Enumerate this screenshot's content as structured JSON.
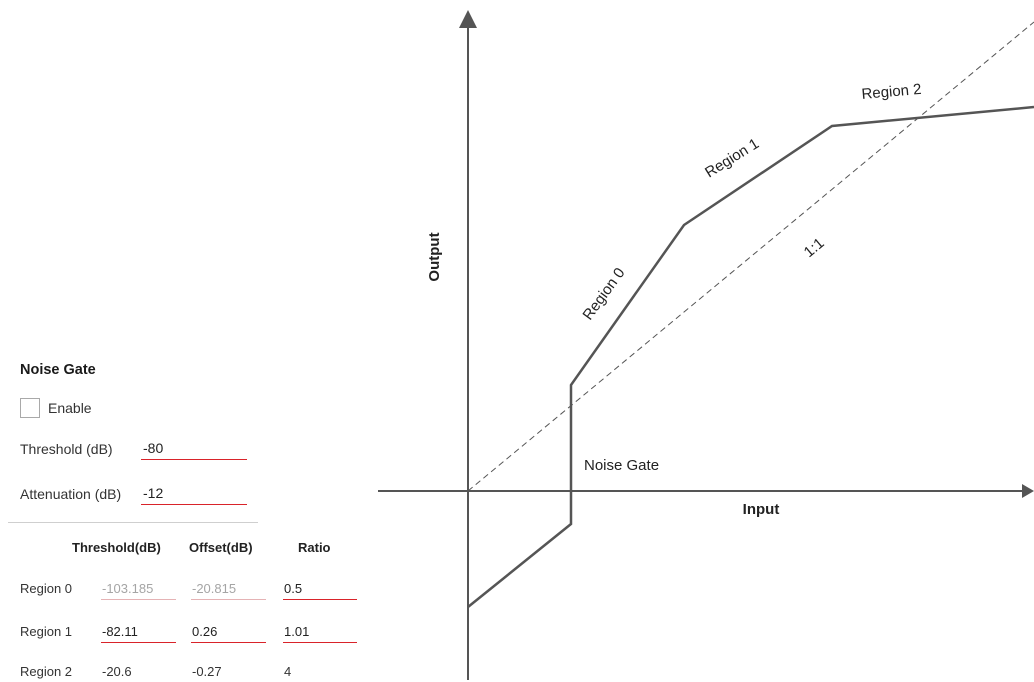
{
  "noise_gate": {
    "title": "Noise Gate",
    "enable_label": "Enable",
    "enabled": false,
    "threshold_label": "Threshold (dB)",
    "threshold_value": "-80",
    "attenuation_label": "Attenuation (dB)",
    "attenuation_value": "-12"
  },
  "table": {
    "headers": [
      "Threshold(dB)",
      "Offset(dB)",
      "Ratio"
    ],
    "rows": [
      {
        "label": "Region 0",
        "threshold": "-103.185",
        "offset": "-20.815",
        "ratio": "0.5"
      },
      {
        "label": "Region 1",
        "threshold": "-82.11",
        "offset": "0.26",
        "ratio": "1.01"
      },
      {
        "label": "Region 2",
        "threshold": "-20.6",
        "offset": "-0.27",
        "ratio": "4"
      }
    ]
  },
  "graph": {
    "x_axis_label": "Input",
    "y_axis_label": "Output",
    "identity_label": "1:1",
    "noise_gate_label": "Noise Gate",
    "region_labels": [
      "Region 0",
      "Region 1",
      "Region 2"
    ],
    "curve_color": "#555555",
    "axis_color": "#555555",
    "accent_color": "#d9232a"
  }
}
